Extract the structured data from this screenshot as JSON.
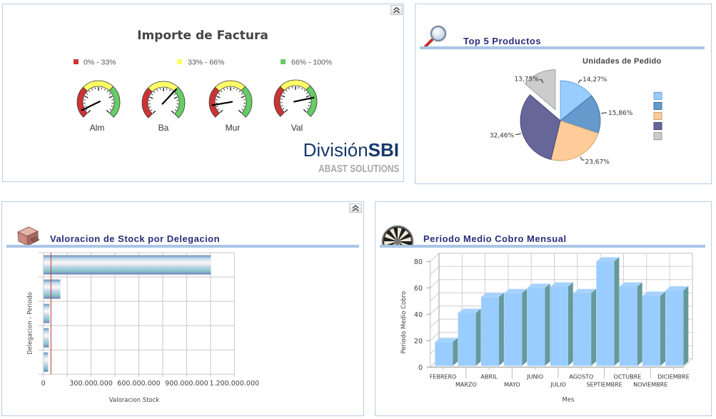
{
  "dashboard": {
    "gauge_panel": {
      "collapse_icon": "double-chevron-up-icon",
      "logo": {
        "brand_light": "División",
        "brand_bold": "SBI",
        "tagline": "ABAST SOLUTIONS"
      }
    },
    "top5_panel": {
      "title": "Top 5 Productos",
      "icon": "magnifier-icon"
    },
    "stock_panel": {
      "title": "Valoracion de Stock por Delegacion",
      "icon": "stock-boxes-icon",
      "collapse_icon": "double-chevron-up-icon"
    },
    "cobro_panel": {
      "title": "Periodo Medio Cobro Mensual",
      "icon": "dartboard-icon"
    }
  },
  "chart_data": [
    {
      "id": "importe-factura",
      "type": "gauge",
      "title": "Importe de Factura",
      "ranges": [
        {
          "label": "0% - 33%",
          "from": 0,
          "to": 33,
          "color": "#cc3333"
        },
        {
          "label": "33% - 66%",
          "from": 33,
          "to": 66,
          "color": "#ffff66"
        },
        {
          "label": "66% - 100%",
          "from": 66,
          "to": 100,
          "color": "#66cc66"
        }
      ],
      "gauges": [
        {
          "label": "Alm",
          "value_pct": 7
        },
        {
          "label": "Ba",
          "value_pct": 66
        },
        {
          "label": "Mur",
          "value_pct": 13
        },
        {
          "label": "Val",
          "value_pct": 79
        }
      ],
      "legend_placement": "top"
    },
    {
      "id": "top5-productos",
      "type": "pie",
      "title": "Unidades de Pedido",
      "slices": [
        {
          "value": 14.27,
          "label": "14,27%",
          "color": "#99ccff",
          "border": "#6a9fd8"
        },
        {
          "value": 15.86,
          "label": "15,86%",
          "color": "#6699cc",
          "border": "#3d6fa8"
        },
        {
          "value": 23.67,
          "label": "23,67%",
          "color": "#ffcc99",
          "border": "#c9a06a"
        },
        {
          "value": 32.46,
          "label": "32,46%",
          "color": "#666699",
          "border": "#44447a"
        },
        {
          "value": 13.75,
          "label": "13,75%",
          "color": "#cccccc",
          "border": "#999999"
        }
      ],
      "exploded": [
        4
      ],
      "start": "top",
      "direction": "clockwise",
      "legend": {
        "placement": "right",
        "labels": [
          "",
          "",
          "",
          "",
          ""
        ]
      }
    },
    {
      "id": "valoracion-stock",
      "type": "bar",
      "orientation": "horizontal",
      "title": "",
      "xlabel": "Valoracion Stock",
      "ylabel": "Delegacion - Periodo",
      "categories": [
        "",
        "",
        "",
        "",
        ""
      ],
      "values": [
        1050000000,
        105000000,
        37000000,
        33000000,
        28000000
      ],
      "xlim": [
        0,
        1200000000
      ],
      "grid": true,
      "grid_step": 150000000,
      "xticks": [
        {
          "value": 0,
          "label": "0"
        },
        {
          "value": 300000000,
          "label": "300.000.000"
        },
        {
          "value": 600000000,
          "label": "600.000.000"
        },
        {
          "value": 900000000,
          "label": "900.000.000"
        },
        {
          "value": 1200000000,
          "label": "1.200.000.000"
        }
      ],
      "reference_line": 48000000,
      "reference_color": "#c0392b"
    },
    {
      "id": "periodo-medio-cobro",
      "type": "bar",
      "style": "3d",
      "title": "",
      "xlabel": "Mes",
      "ylabel": "Periodo Medio Cobro",
      "categories": [
        "FEBRERO",
        "MARZO",
        "ABRIL",
        "MAYO",
        "JUNIO",
        "JULIO",
        "AGOSTO",
        "SEPTIEMBRE",
        "OCTUBRE",
        "NOVIEMBRE",
        "DICIEMBRE"
      ],
      "values": [
        18,
        40,
        52,
        55,
        59,
        60,
        55,
        79,
        60,
        53,
        57
      ],
      "ylim": [
        0,
        80
      ],
      "yticks": [
        0,
        20,
        40,
        60,
        80
      ],
      "grid": true,
      "grid_step": 10,
      "bar_color": "#99ccff",
      "bar_side_color": "#669999"
    }
  ]
}
